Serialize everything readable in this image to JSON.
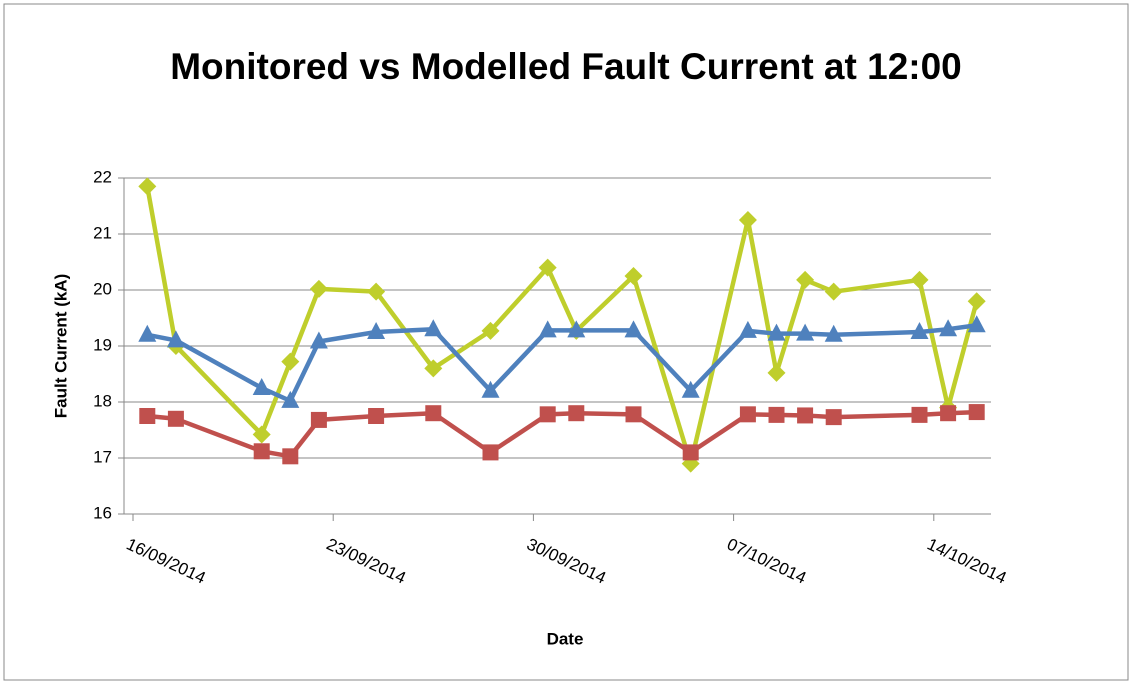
{
  "chart_data": {
    "type": "line",
    "title": "Monitored vs Modelled Fault Current at 12:00",
    "x_label": "Date",
    "y_label": "Fault Current (kA)",
    "x": [
      "2014-09-16",
      "2014-09-17",
      "2014-09-20",
      "2014-09-21",
      "2014-09-22",
      "2014-09-24",
      "2014-09-26",
      "2014-09-28",
      "2014-09-30",
      "2014-10-01",
      "2014-10-03",
      "2014-10-05",
      "2014-10-07",
      "2014-10-08",
      "2014-10-09",
      "2014-10-10",
      "2014-10-13",
      "2014-10-14",
      "2014-10-15"
    ],
    "series": [
      {
        "color": "#bfce2c",
        "marker": "diamond",
        "values": [
          21.85,
          19.0,
          17.42,
          18.72,
          20.02,
          19.97,
          18.6,
          19.27,
          20.4,
          19.27,
          20.25,
          16.9,
          21.25,
          18.52,
          20.18,
          19.97,
          20.18,
          17.9,
          19.8
        ]
      },
      {
        "color": "#4f81bd",
        "marker": "triangle",
        "values": [
          19.2,
          19.1,
          18.25,
          18.02,
          19.08,
          19.25,
          19.3,
          18.2,
          19.28,
          19.28,
          19.28,
          18.2,
          19.27,
          19.22,
          19.22,
          19.2,
          19.25,
          19.3,
          19.37
        ]
      },
      {
        "color": "#c0504d",
        "marker": "square",
        "values": [
          17.75,
          17.7,
          17.12,
          17.03,
          17.68,
          17.75,
          17.8,
          17.1,
          17.78,
          17.8,
          17.78,
          17.1,
          17.78,
          17.77,
          17.76,
          17.73,
          17.77,
          17.8,
          17.82
        ]
      }
    ],
    "xlim": [
      "2014-09-16",
      "2014-10-16"
    ],
    "xticks": [
      {
        "value": "2014-09-16",
        "label": "16/09/2014"
      },
      {
        "value": "2014-09-23",
        "label": "23/09/2014"
      },
      {
        "value": "2014-09-30",
        "label": "30/09/2014"
      },
      {
        "value": "2014-10-07",
        "label": "07/10/2014"
      },
      {
        "value": "2014-10-14",
        "label": "14/10/2014"
      }
    ],
    "ylim": [
      16,
      22
    ],
    "yticks": [
      16,
      17,
      18,
      19,
      20,
      21,
      22
    ],
    "grid": true
  }
}
